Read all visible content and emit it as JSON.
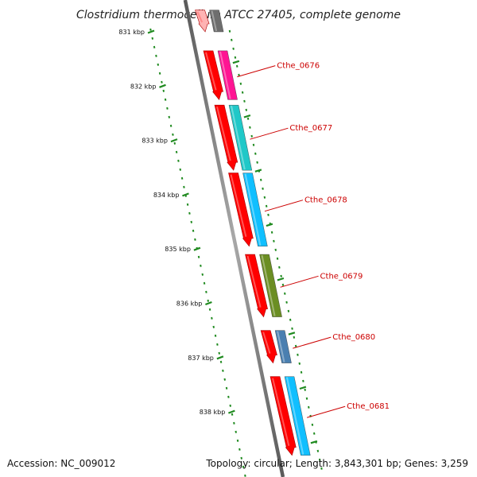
{
  "title": "Clostridium thermocellum ATCC 27405, complete genome",
  "accession": "Accession: NC_009012",
  "topology": "Topology: circular; Length: 3,843,301 bp; Genes: 3,259",
  "colors": {
    "backbone": "#8a8a8a",
    "ruler": "#1f8a1f",
    "orf": "#ff0000",
    "label": "#cc0000"
  },
  "ruler_labels": [
    "831 kbp",
    "832 kbp",
    "833 kbp",
    "834 kbp",
    "835 kbp",
    "836 kbp",
    "837 kbp",
    "838 kbp"
  ],
  "genes": [
    {
      "id": "Cthe_0675",
      "label": "",
      "color": "#6e6e6e",
      "start_kbp": 830.6,
      "end_kbp": 831.0,
      "orf_color": "#ffb3b3"
    },
    {
      "id": "Cthe_0676",
      "label": "Cthe_0676",
      "color": "#ff1493",
      "start_kbp": 831.35,
      "end_kbp": 832.25,
      "orf_color": "#ff0000"
    },
    {
      "id": "Cthe_0677",
      "label": "Cthe_0677",
      "color": "#20c8c8",
      "start_kbp": 832.35,
      "end_kbp": 833.55,
      "orf_color": "#ff0000"
    },
    {
      "id": "Cthe_0678",
      "label": "Cthe_0678",
      "color": "#10bfff",
      "start_kbp": 833.6,
      "end_kbp": 834.95,
      "orf_color": "#ff0000"
    },
    {
      "id": "Cthe_0679",
      "label": "Cthe_0679",
      "color": "#6b8e23",
      "start_kbp": 835.1,
      "end_kbp": 836.25,
      "orf_color": "#ff0000"
    },
    {
      "id": "Cthe_0680",
      "label": "Cthe_0680",
      "color": "#4a7fb0",
      "start_kbp": 836.5,
      "end_kbp": 837.1,
      "orf_color": "#ff0000"
    },
    {
      "id": "Cthe_0681",
      "label": "Cthe_0681",
      "color": "#10bfff",
      "start_kbp": 837.35,
      "end_kbp": 838.8,
      "orf_color": "#ff0000"
    }
  ]
}
